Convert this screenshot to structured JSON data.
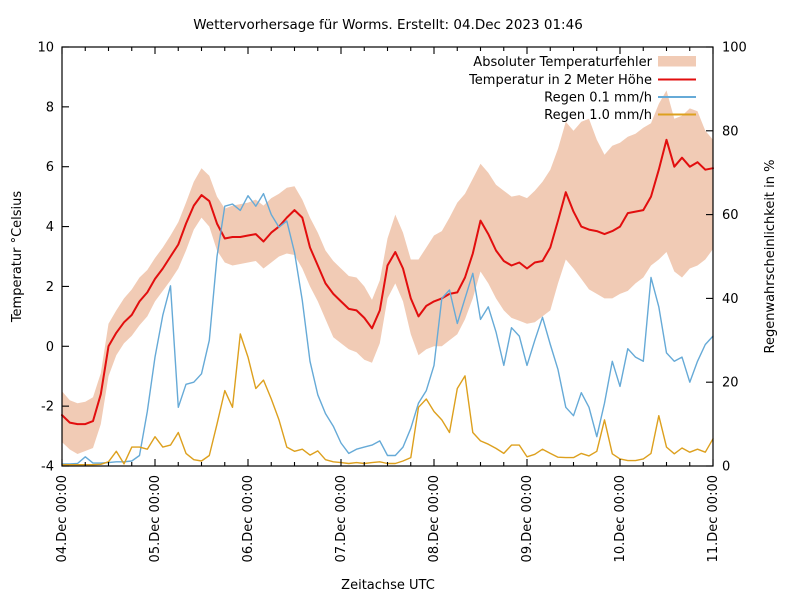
{
  "chart_data": {
    "type": "line",
    "title": "Wettervorhersage für Worms. Erstellt: 04.Dec 2023 01:46",
    "xlabel": "Zeitachse UTC",
    "ylabel": "Temperatur °Celsius",
    "y2label": "Regenwahrscheinlichkeit in %",
    "grid": false,
    "legend_position": "top-right-inside",
    "axis_color": "#000000",
    "ylim": [
      -4,
      10
    ],
    "y2lim": [
      0,
      100
    ],
    "y_ticks": [
      -4,
      -2,
      0,
      2,
      4,
      6,
      8,
      10
    ],
    "y2_ticks": [
      0,
      20,
      40,
      60,
      80,
      100
    ],
    "x_range_hours": [
      0,
      168
    ],
    "x_tick_hours": [
      0,
      24,
      48,
      72,
      96,
      120,
      144,
      168
    ],
    "x_tick_labels": [
      "04.Dec 00:00",
      "05.Dec 00:00",
      "06.Dec 00:00",
      "07.Dec 00:00",
      "08.Dec 00:00",
      "09.Dec 00:00",
      "10.Dec 00:00",
      "11.Dec 00:00"
    ],
    "x_minor_step_hours": 6,
    "step_hours": 2,
    "series": [
      {
        "name": "Absoluter Temperaturfehler",
        "type": "band",
        "axis": "y1",
        "color": "#f1cbb5",
        "top": [
          -1.5,
          -1.8,
          -1.9,
          -1.85,
          -1.7,
          -0.9,
          0.75,
          1.2,
          1.6,
          1.9,
          2.3,
          2.55,
          2.95,
          3.3,
          3.7,
          4.15,
          4.8,
          5.5,
          5.95,
          5.7,
          5.0,
          4.6,
          4.7,
          4.75,
          4.8,
          4.9,
          4.7,
          4.95,
          5.1,
          5.3,
          5.35,
          4.9,
          4.3,
          3.8,
          3.2,
          2.85,
          2.6,
          2.35,
          2.3,
          2.0,
          1.55,
          2.2,
          3.6,
          4.4,
          3.8,
          2.9,
          2.9,
          3.3,
          3.7,
          3.85,
          4.3,
          4.8,
          5.1,
          5.6,
          6.1,
          5.8,
          5.4,
          5.2,
          5.0,
          5.05,
          4.95,
          5.2,
          5.5,
          5.9,
          6.6,
          7.5,
          7.2,
          7.5,
          7.6,
          6.9,
          6.4,
          6.7,
          6.8,
          7.0,
          7.1,
          7.3,
          7.45,
          8.1,
          8.55,
          7.6,
          7.7,
          7.95,
          7.85,
          7.2,
          6.9
        ],
        "bottom": [
          -3.2,
          -3.45,
          -3.6,
          -3.5,
          -3.4,
          -2.6,
          -1.0,
          -0.3,
          0.1,
          0.35,
          0.7,
          1.0,
          1.5,
          1.85,
          2.2,
          2.6,
          3.2,
          3.9,
          4.3,
          4.0,
          3.2,
          2.8,
          2.7,
          2.75,
          2.8,
          2.85,
          2.6,
          2.8,
          3.0,
          3.1,
          3.05,
          2.6,
          2.0,
          1.5,
          0.9,
          0.3,
          0.1,
          -0.1,
          -0.2,
          -0.45,
          -0.55,
          0.1,
          1.6,
          2.1,
          1.5,
          0.4,
          -0.3,
          -0.1,
          0.0,
          0.0,
          0.2,
          0.4,
          0.9,
          1.6,
          2.5,
          2.1,
          1.6,
          1.2,
          0.95,
          0.85,
          0.75,
          0.8,
          1.0,
          1.2,
          2.1,
          2.9,
          2.6,
          2.25,
          1.9,
          1.75,
          1.6,
          1.6,
          1.75,
          1.85,
          2.1,
          2.3,
          2.7,
          2.9,
          3.15,
          2.5,
          2.3,
          2.6,
          2.7,
          2.9,
          3.25
        ]
      },
      {
        "name": "Temperatur in 2 Meter Höhe",
        "type": "line",
        "axis": "y1",
        "color": "#e20e0e",
        "width": 2,
        "values": [
          -2.3,
          -2.55,
          -2.6,
          -2.6,
          -2.5,
          -1.6,
          0.0,
          0.45,
          0.8,
          1.05,
          1.5,
          1.8,
          2.25,
          2.6,
          3.0,
          3.4,
          4.1,
          4.7,
          5.05,
          4.85,
          4.1,
          3.6,
          3.65,
          3.65,
          3.7,
          3.75,
          3.5,
          3.8,
          4.0,
          4.3,
          4.55,
          4.3,
          3.3,
          2.7,
          2.1,
          1.75,
          1.5,
          1.25,
          1.2,
          0.95,
          0.6,
          1.2,
          2.7,
          3.15,
          2.6,
          1.6,
          1.0,
          1.35,
          1.5,
          1.6,
          1.75,
          1.8,
          2.3,
          3.1,
          4.2,
          3.75,
          3.2,
          2.85,
          2.7,
          2.8,
          2.6,
          2.8,
          2.85,
          3.3,
          4.2,
          5.15,
          4.5,
          4.0,
          3.9,
          3.85,
          3.75,
          3.85,
          4.0,
          4.45,
          4.5,
          4.55,
          5.0,
          5.9,
          6.9,
          6.0,
          6.3,
          6.0,
          6.15,
          5.9,
          5.95
        ]
      },
      {
        "name": "Regen 0.1 mm/h",
        "type": "line",
        "axis": "y2",
        "color": "#66aad7",
        "width": 1.4,
        "values": [
          0.5,
          0.5,
          0.6,
          2.2,
          0.7,
          0.7,
          0.8,
          1.0,
          1.0,
          1.2,
          2.5,
          13,
          26,
          36,
          43,
          14,
          19.5,
          20,
          22,
          30,
          50,
          62,
          62.5,
          61,
          64.5,
          62,
          65,
          60,
          57,
          58.5,
          51,
          39.5,
          25,
          17,
          12.5,
          9.5,
          5.5,
          3,
          4,
          4.5,
          5,
          6,
          2.5,
          2.5,
          4.5,
          9,
          15,
          18,
          24,
          40,
          42,
          34,
          40,
          46,
          35,
          38,
          32,
          24,
          33,
          31,
          24,
          30,
          35.5,
          29,
          23,
          14,
          12,
          17.5,
          14,
          7,
          15,
          25,
          19,
          28,
          26,
          25,
          45,
          38,
          27,
          25,
          26,
          20,
          25,
          29,
          31
        ]
      },
      {
        "name": "Regen 1.0 mm/h",
        "type": "line",
        "axis": "y2",
        "color": "#dda01e",
        "width": 1.4,
        "values": [
          0.3,
          0.3,
          0.3,
          0.3,
          0.3,
          0.4,
          1.0,
          3.5,
          0.5,
          4.5,
          4.5,
          4.0,
          7.0,
          4.5,
          5.0,
          8.0,
          3.0,
          1.5,
          1.2,
          2.5,
          10,
          18,
          14,
          31.5,
          26,
          18.5,
          20.5,
          16,
          11,
          4.5,
          3.5,
          4.0,
          2.6,
          3.6,
          1.5,
          1.0,
          0.8,
          0.6,
          0.8,
          0.6,
          0.8,
          1.0,
          0.6,
          0.6,
          1.2,
          2.0,
          14,
          16,
          13,
          11,
          8,
          18.5,
          21.5,
          8,
          6,
          5.2,
          4.2,
          3.0,
          5.0,
          5.0,
          2.2,
          2.8,
          4.0,
          3.0,
          2.1,
          2.0,
          2.0,
          3.0,
          2.4,
          3.5,
          11,
          2.9,
          1.7,
          1.3,
          1.3,
          1.7,
          3.0,
          12,
          4.5,
          2.9,
          4.3,
          3.3,
          4.0,
          3.3,
          6.5
        ]
      }
    ]
  }
}
